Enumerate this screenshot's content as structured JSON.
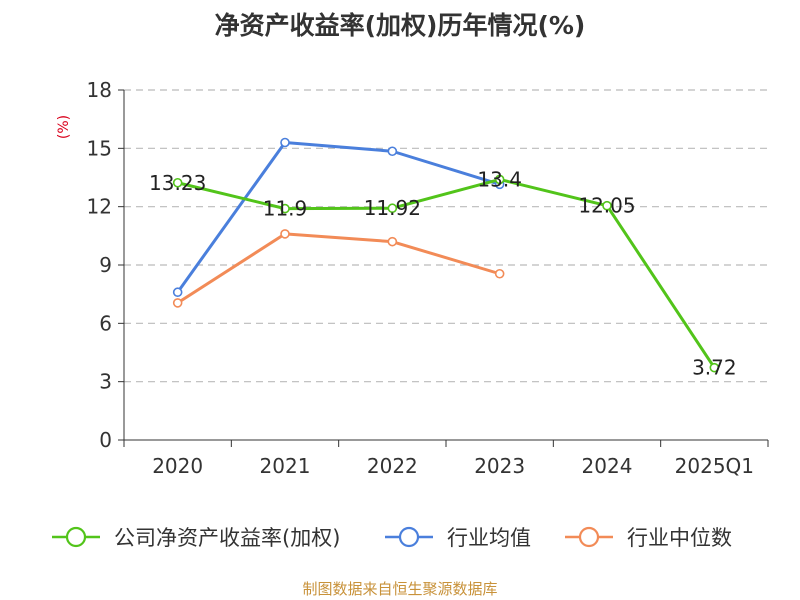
{
  "chart_data": {
    "type": "line",
    "title": "净资产收益率(加权)历年情况(%)",
    "ylabel": "(%)",
    "ylim": [
      0,
      18
    ],
    "yticks": [
      0,
      3,
      6,
      9,
      12,
      15,
      18
    ],
    "categories": [
      "2020",
      "2021",
      "2022",
      "2023",
      "2024",
      "2025Q1"
    ],
    "grid": true,
    "legend_position": "bottom",
    "series": [
      {
        "name": "公司净资产收益率(加权)",
        "color": "#52c41a",
        "values": [
          13.23,
          11.9,
          11.92,
          13.4,
          12.05,
          3.72
        ],
        "labels": [
          "13.23",
          "11.9",
          "11.92",
          "13.4",
          "12.05",
          "3.72"
        ]
      },
      {
        "name": "行业均值",
        "color": "#4a7fdc",
        "values": [
          7.6,
          15.3,
          14.85,
          13.15,
          null,
          null
        ]
      },
      {
        "name": "行业中位数",
        "color": "#f28b57",
        "values": [
          7.05,
          10.6,
          10.2,
          8.55,
          null,
          null
        ]
      }
    ]
  },
  "colors": {
    "ylabel": "#d9001b",
    "grid": "#bbbbbb",
    "axis": "#333333"
  },
  "footer": "制图数据来自恒生聚源数据库"
}
